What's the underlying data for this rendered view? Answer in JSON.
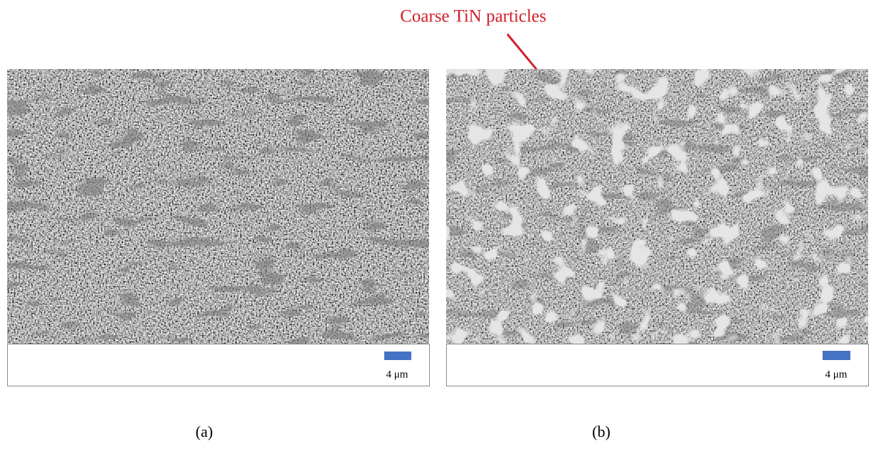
{
  "annotation": "Coarse TiN particles",
  "panels": [
    {
      "scale_bar": "4 μm",
      "caption": "(a)"
    },
    {
      "scale_bar": "4 μm",
      "caption": "(b)"
    }
  ]
}
